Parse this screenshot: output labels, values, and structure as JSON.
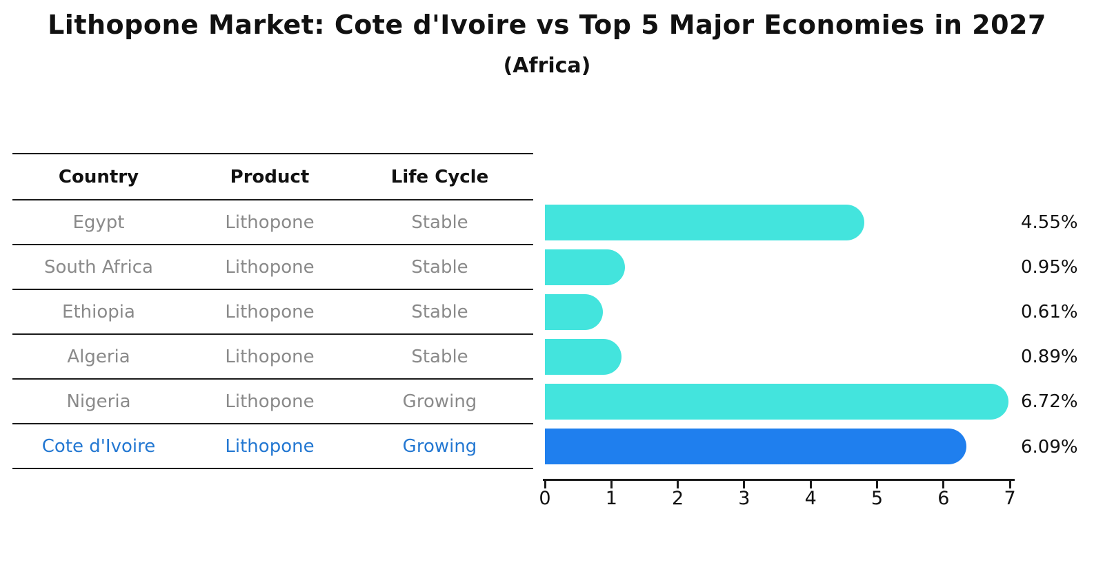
{
  "chart_data": {
    "type": "bar",
    "orientation": "horizontal",
    "title": "Lithopone Market: Cote d'Ivoire vs Top 5 Major Economies in 2027",
    "subtitle": "(Africa)",
    "categories": [
      "Egypt",
      "South Africa",
      "Ethiopia",
      "Algeria",
      "Nigeria",
      "Cote d'Ivoire"
    ],
    "values": [
      4.55,
      0.95,
      0.61,
      0.89,
      6.72,
      6.09
    ],
    "value_labels": [
      "4.55%",
      "0.95%",
      "0.61%",
      "0.89%",
      "6.72%",
      "6.09%"
    ],
    "xlim": [
      0,
      7
    ],
    "x_ticks": [
      "0",
      "1",
      "2",
      "3",
      "4",
      "5",
      "6",
      "7"
    ],
    "grid": "off",
    "legend": "none",
    "bar_color": "#43E4DD",
    "highlight_index": 5,
    "highlight_bar_color": "#1F7FEE",
    "highlight_bar_border_style": "dotted",
    "highlight_text_color": "#2478D2"
  },
  "table": {
    "columns": [
      "Country",
      "Product",
      "Life Cycle"
    ],
    "rows": [
      {
        "country": "Egypt",
        "product": "Lithopone",
        "life_cycle": "Stable",
        "highlighted": false
      },
      {
        "country": "South Africa",
        "product": "Lithopone",
        "life_cycle": "Stable",
        "highlighted": false
      },
      {
        "country": "Ethiopia",
        "product": "Lithopone",
        "life_cycle": "Stable",
        "highlighted": false
      },
      {
        "country": "Algeria",
        "product": "Lithopone",
        "life_cycle": "Stable",
        "highlighted": false
      },
      {
        "country": "Nigeria",
        "product": "Lithopone",
        "life_cycle": "Growing",
        "highlighted": false
      },
      {
        "country": "Cote d'Ivoire",
        "product": "Lithopone",
        "life_cycle": "Growing",
        "highlighted": true
      }
    ]
  }
}
